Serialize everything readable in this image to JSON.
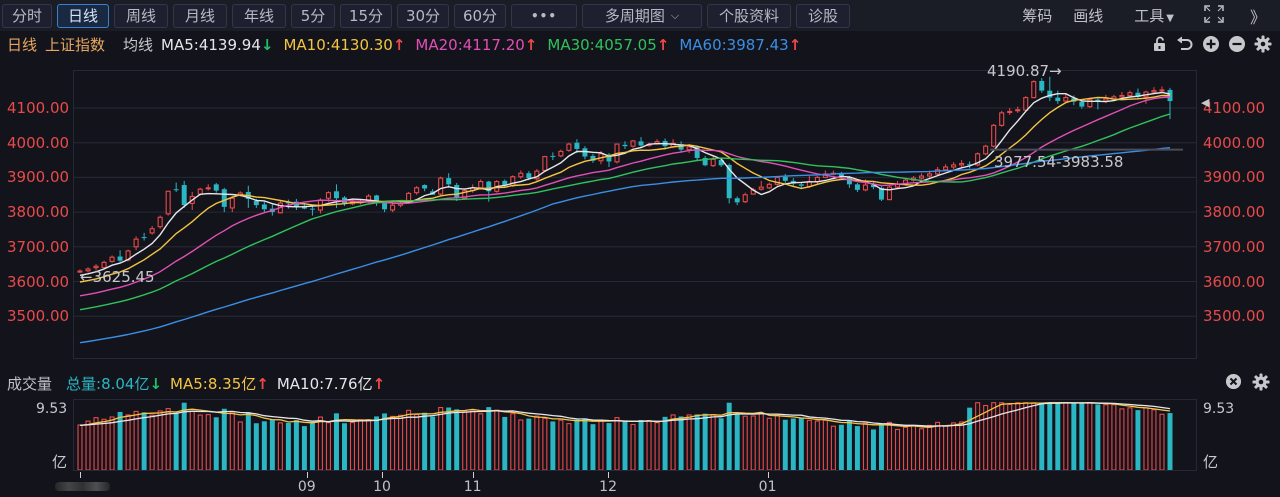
{
  "toolbar": {
    "period_tabs": [
      {
        "label": "分时",
        "active": false
      },
      {
        "label": "日线",
        "active": true
      },
      {
        "label": "周线",
        "active": false
      },
      {
        "label": "月线",
        "active": false
      },
      {
        "label": "年线",
        "active": false
      },
      {
        "label": "5分",
        "active": false
      },
      {
        "label": "15分",
        "active": false
      },
      {
        "label": "30分",
        "active": false
      },
      {
        "label": "60分",
        "active": false
      }
    ],
    "more_label": "•••",
    "multi_period_label": "多周期图",
    "stock_info_label": "个股资料",
    "diagnose_label": "诊股",
    "right_tools": {
      "chips_label": "筹码",
      "draw_label": "画线",
      "tools_label": "工具",
      "tools_arrow": "▼",
      "fullscreen_icon": "fullscreen-icon",
      "collapse_label": "》"
    }
  },
  "ma_header": {
    "period": "日线",
    "index_name": "上证指数",
    "ma_label": "均线",
    "ma_items": [
      {
        "key": "MA5",
        "text": "MA5:4139.94",
        "dir": "down",
        "color": "#e6e6ea"
      },
      {
        "key": "MA10",
        "text": "MA10:4130.30",
        "dir": "up",
        "color": "#f3c441"
      },
      {
        "key": "MA20",
        "text": "MA20:4117.20",
        "dir": "up",
        "color": "#e14fb6"
      },
      {
        "key": "MA30",
        "text": "MA30:4057.05",
        "dir": "up",
        "color": "#2fc25b"
      },
      {
        "key": "MA60",
        "text": "MA60:3987.43",
        "dir": "up",
        "color": "#3a8ee6"
      }
    ],
    "arrow_up": "↑",
    "arrow_down": "↓",
    "icons": [
      "unlock-icon",
      "undo-icon",
      "zoom-in-icon",
      "zoom-out-icon",
      "settings-icon"
    ]
  },
  "volume_header": {
    "title": "成交量",
    "total": {
      "text": "总量:8.04亿",
      "dir": "down",
      "color": "#2bb6c4"
    },
    "ma5": {
      "text": "MA5:8.35亿",
      "dir": "up",
      "color": "#f3c441"
    },
    "ma10": {
      "text": "MA10:7.76亿",
      "dir": "up",
      "color": "#e6e6ea"
    },
    "icons": [
      "close-icon",
      "settings-icon"
    ]
  },
  "annotations": {
    "high": "4190.87→",
    "low": "←3625.45",
    "range": "3977.54-3983.58"
  },
  "colors": {
    "up": "#e84a4a",
    "down": "#2bb6c4",
    "background": "#13141b",
    "grid": "#262837"
  },
  "chart_data": [
    {
      "type": "candlestick",
      "title": "上证指数 日线",
      "ylabel": "",
      "ylim": [
        3400,
        4210
      ],
      "y_ticks": [
        "4100.00",
        "4000.00",
        "3900.00",
        "3800.00",
        "3700.00",
        "3600.00",
        "3500.00"
      ],
      "x_ticks": [
        "09",
        "10",
        "11",
        "12",
        "01"
      ],
      "x_tick_positions": [
        28.3,
        37.7,
        49.0,
        65.9,
        85.8
      ],
      "legend": [
        "MA5",
        "MA10",
        "MA20",
        "MA30",
        "MA60"
      ],
      "annotations": [
        {
          "text": "4190.87",
          "type": "period-high"
        },
        {
          "text": "3625.45",
          "type": "period-low"
        },
        {
          "text": "3977.54-3983.58",
          "type": "gap-range"
        }
      ],
      "last_values": {
        "MA5": 4139.94,
        "MA10": 4130.3,
        "MA20": 4117.2,
        "MA30": 4057.05,
        "MA60": 3987.43
      },
      "candles": [
        [
          3628,
          3630,
          3635,
          3625
        ],
        [
          3631,
          3636,
          3641,
          3626
        ],
        [
          3640,
          3644,
          3650,
          3632
        ],
        [
          3640,
          3655,
          3660,
          3636
        ],
        [
          3658,
          3670,
          3675,
          3654
        ],
        [
          3672,
          3660,
          3690,
          3656
        ],
        [
          3662,
          3688,
          3692,
          3658
        ],
        [
          3700,
          3722,
          3730,
          3690
        ],
        [
          3728,
          3726,
          3740,
          3718
        ],
        [
          3740,
          3752,
          3760,
          3735
        ],
        [
          3758,
          3785,
          3790,
          3752
        ],
        [
          3795,
          3860,
          3862,
          3790
        ],
        [
          3866,
          3865,
          3885,
          3858
        ],
        [
          3878,
          3820,
          3890,
          3812
        ],
        [
          3825,
          3845,
          3858,
          3806
        ],
        [
          3852,
          3866,
          3870,
          3848
        ],
        [
          3870,
          3870,
          3880,
          3862
        ],
        [
          3880,
          3862,
          3884,
          3856
        ],
        [
          3866,
          3815,
          3870,
          3800
        ],
        [
          3812,
          3840,
          3846,
          3800
        ],
        [
          3848,
          3855,
          3860,
          3845
        ],
        [
          3858,
          3838,
          3876,
          3812
        ],
        [
          3832,
          3820,
          3838,
          3812
        ],
        [
          3822,
          3808,
          3830,
          3800
        ],
        [
          3810,
          3800,
          3822,
          3790
        ],
        [
          3798,
          3826,
          3832,
          3796
        ],
        [
          3828,
          3826,
          3836,
          3810
        ],
        [
          3830,
          3816,
          3838,
          3806
        ],
        [
          3818,
          3810,
          3826,
          3808
        ],
        [
          3810,
          3808,
          3820,
          3790
        ],
        [
          3806,
          3835,
          3840,
          3796
        ],
        [
          3840,
          3856,
          3860,
          3830
        ],
        [
          3860,
          3840,
          3880,
          3812
        ],
        [
          3842,
          3826,
          3846,
          3818
        ],
        [
          3824,
          3830,
          3836,
          3820
        ],
        [
          3830,
          3830,
          3838,
          3822
        ],
        [
          3832,
          3846,
          3852,
          3826
        ],
        [
          3848,
          3828,
          3850,
          3818
        ],
        [
          3826,
          3808,
          3832,
          3800
        ],
        [
          3806,
          3820,
          3830,
          3800
        ],
        [
          3820,
          3826,
          3834,
          3814
        ],
        [
          3830,
          3854,
          3858,
          3826
        ],
        [
          3856,
          3870,
          3875,
          3850
        ],
        [
          3878,
          3868,
          3880,
          3860
        ],
        [
          3860,
          3850,
          3866,
          3850
        ],
        [
          3852,
          3898,
          3902,
          3848
        ],
        [
          3898,
          3880,
          3912,
          3870
        ],
        [
          3878,
          3842,
          3884,
          3832
        ],
        [
          3840,
          3862,
          3866,
          3838
        ],
        [
          3862,
          3870,
          3880,
          3856
        ],
        [
          3870,
          3888,
          3894,
          3864
        ],
        [
          3888,
          3860,
          3890,
          3830
        ],
        [
          3860,
          3888,
          3892,
          3856
        ],
        [
          3890,
          3878,
          3894,
          3872
        ],
        [
          3876,
          3902,
          3906,
          3872
        ],
        [
          3902,
          3912,
          3920,
          3896
        ],
        [
          3912,
          3898,
          3918,
          3892
        ],
        [
          3896,
          3918,
          3924,
          3890
        ],
        [
          3920,
          3960,
          3962,
          3916
        ],
        [
          3962,
          3960,
          3972,
          3950
        ],
        [
          3962,
          3975,
          3980,
          3958
        ],
        [
          3978,
          3996,
          4000,
          3974
        ],
        [
          4000,
          3982,
          4010,
          3970
        ],
        [
          3984,
          3960,
          3990,
          3952
        ],
        [
          3962,
          3948,
          3968,
          3942
        ],
        [
          3948,
          3968,
          3976,
          3938
        ],
        [
          3966,
          3946,
          3970,
          3930
        ],
        [
          3945,
          3996,
          3998,
          3940
        ],
        [
          3994,
          3990,
          4004,
          3982
        ],
        [
          3990,
          4005,
          4008,
          3986
        ],
        [
          4004,
          3992,
          4016,
          3984
        ],
        [
          3992,
          3995,
          4000,
          3988
        ],
        [
          3998,
          4003,
          4010,
          3994
        ],
        [
          4005,
          3990,
          4012,
          3980
        ],
        [
          3988,
          3998,
          4010,
          3984
        ],
        [
          3996,
          3980,
          4004,
          3972
        ],
        [
          3980,
          3988,
          3994,
          3970
        ],
        [
          3988,
          3956,
          3992,
          3950
        ],
        [
          3956,
          3935,
          3962,
          3932
        ],
        [
          3934,
          3952,
          3960,
          3930
        ],
        [
          3950,
          3935,
          3956,
          3930
        ],
        [
          3936,
          3840,
          3940,
          3825
        ],
        [
          3840,
          3828,
          3845,
          3820
        ],
        [
          3830,
          3850,
          3856,
          3826
        ],
        [
          3852,
          3864,
          3870,
          3850
        ],
        [
          3866,
          3872,
          3890,
          3862
        ],
        [
          3870,
          3880,
          3885,
          3866
        ],
        [
          3880,
          3900,
          3904,
          3876
        ],
        [
          3902,
          3890,
          3910,
          3884
        ],
        [
          3890,
          3882,
          3898,
          3872
        ],
        [
          3880,
          3876,
          3886,
          3866
        ],
        [
          3874,
          3888,
          3904,
          3870
        ],
        [
          3888,
          3900,
          3904,
          3880
        ],
        [
          3900,
          3910,
          3920,
          3898
        ],
        [
          3910,
          3912,
          3920,
          3906
        ],
        [
          3912,
          3904,
          3916,
          3900
        ],
        [
          3900,
          3880,
          3904,
          3870
        ],
        [
          3880,
          3864,
          3884,
          3858
        ],
        [
          3864,
          3878,
          3894,
          3860
        ],
        [
          3878,
          3872,
          3888,
          3866
        ],
        [
          3870,
          3836,
          3874,
          3832
        ],
        [
          3836,
          3872,
          3876,
          3834
        ],
        [
          3872,
          3880,
          3890,
          3868
        ],
        [
          3880,
          3892,
          3898,
          3876
        ],
        [
          3892,
          3898,
          3904,
          3888
        ],
        [
          3898,
          3904,
          3912,
          3894
        ],
        [
          3904,
          3910,
          3920,
          3898
        ],
        [
          3910,
          3922,
          3930,
          3906
        ],
        [
          3922,
          3930,
          3938,
          3918
        ],
        [
          3930,
          3936,
          3944,
          3924
        ],
        [
          3936,
          3940,
          3950,
          3930
        ],
        [
          3938,
          3936,
          3946,
          3926
        ],
        [
          3936,
          3968,
          3972,
          3932
        ],
        [
          3968,
          3990,
          3994,
          3964
        ],
        [
          3990,
          4050,
          4054,
          3986
        ],
        [
          4050,
          4086,
          4092,
          4046
        ],
        [
          4088,
          4090,
          4100,
          4080
        ],
        [
          4092,
          4095,
          4104,
          4086
        ],
        [
          4094,
          4130,
          4134,
          4090
        ],
        [
          4130,
          4176,
          4180,
          4128
        ],
        [
          4178,
          4150,
          4186,
          4144
        ],
        [
          4150,
          4130,
          4190,
          4120
        ],
        [
          4130,
          4120,
          4150,
          4112
        ],
        [
          4120,
          4130,
          4140,
          4116
        ],
        [
          4128,
          4118,
          4136,
          4108
        ],
        [
          4118,
          4104,
          4122,
          4098
        ],
        [
          4104,
          4124,
          4130,
          4100
        ],
        [
          4124,
          4120,
          4128,
          4096
        ],
        [
          4120,
          4126,
          4138,
          4114
        ],
        [
          4126,
          4132,
          4138,
          4120
        ],
        [
          4132,
          4136,
          4146,
          4126
        ],
        [
          4136,
          4144,
          4150,
          4130
        ],
        [
          4144,
          4132,
          4156,
          4124
        ],
        [
          4132,
          4146,
          4150,
          4112
        ],
        [
          4146,
          4150,
          4160,
          4140
        ],
        [
          4150,
          4152,
          4162,
          4144
        ],
        [
          4152,
          4120,
          4158,
          4068
        ]
      ]
    },
    {
      "type": "bar",
      "title": "成交量",
      "ylabel": "亿",
      "y_ticks": [
        "9.53"
      ],
      "ylim": [
        0,
        9.6
      ],
      "legend": [
        "总量",
        "MA5",
        "MA10"
      ],
      "last_values": {
        "总量": 8.04,
        "MA5": 8.35,
        "MA10": 7.76
      }
    }
  ]
}
